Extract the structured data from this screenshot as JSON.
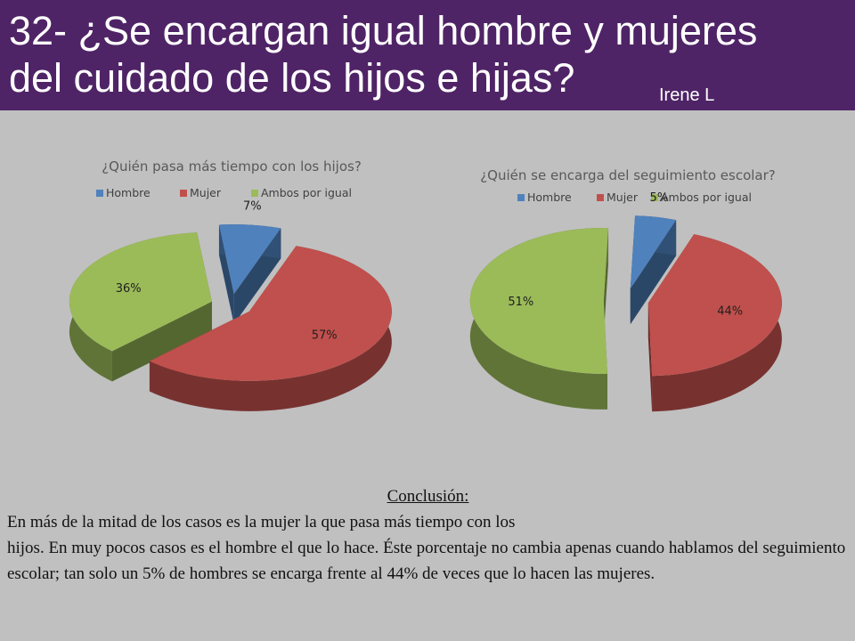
{
  "header": {
    "title": "32- ¿Se encargan igual hombre y mujeres\ndel cuidado de los hijos e hijas?",
    "author": "Irene L"
  },
  "colors": {
    "header_bg": "#4f2466",
    "hombre": "#4f81bd",
    "mujer": "#c0504d",
    "ambos": "#9bbb59"
  },
  "chart_data": [
    {
      "type": "pie",
      "title": "¿Quién pasa más tiempo con los hijos?",
      "legend_position": "top",
      "categories": [
        "Hombre",
        "Mujer",
        "Ambos por igual"
      ],
      "values": [
        7,
        57,
        36
      ],
      "labels": [
        "7%",
        "57%",
        "36%"
      ],
      "colors": [
        "#4f81bd",
        "#c0504d",
        "#9bbb59"
      ]
    },
    {
      "type": "pie",
      "title": "¿Quién se encarga del seguimiento escolar?",
      "legend_position": "top",
      "categories": [
        "Hombre",
        "Mujer",
        "Ambos por igual"
      ],
      "values": [
        5,
        44,
        51
      ],
      "labels": [
        "5%",
        "44%",
        "51%"
      ],
      "colors": [
        "#4f81bd",
        "#c0504d",
        "#9bbb59"
      ]
    }
  ],
  "conclusion": {
    "heading": "Conclusión:",
    "body": "En  más de la mitad de los casos es la mujer la que pasa más tiempo con los\nhijos. En muy pocos casos es el hombre el que lo hace. Éste porcentaje no cambia  apenas cuando hablamos del seguimiento escolar; tan solo un 5% de hombres se encarga frente al 44% de veces que lo hacen las mujeres."
  }
}
